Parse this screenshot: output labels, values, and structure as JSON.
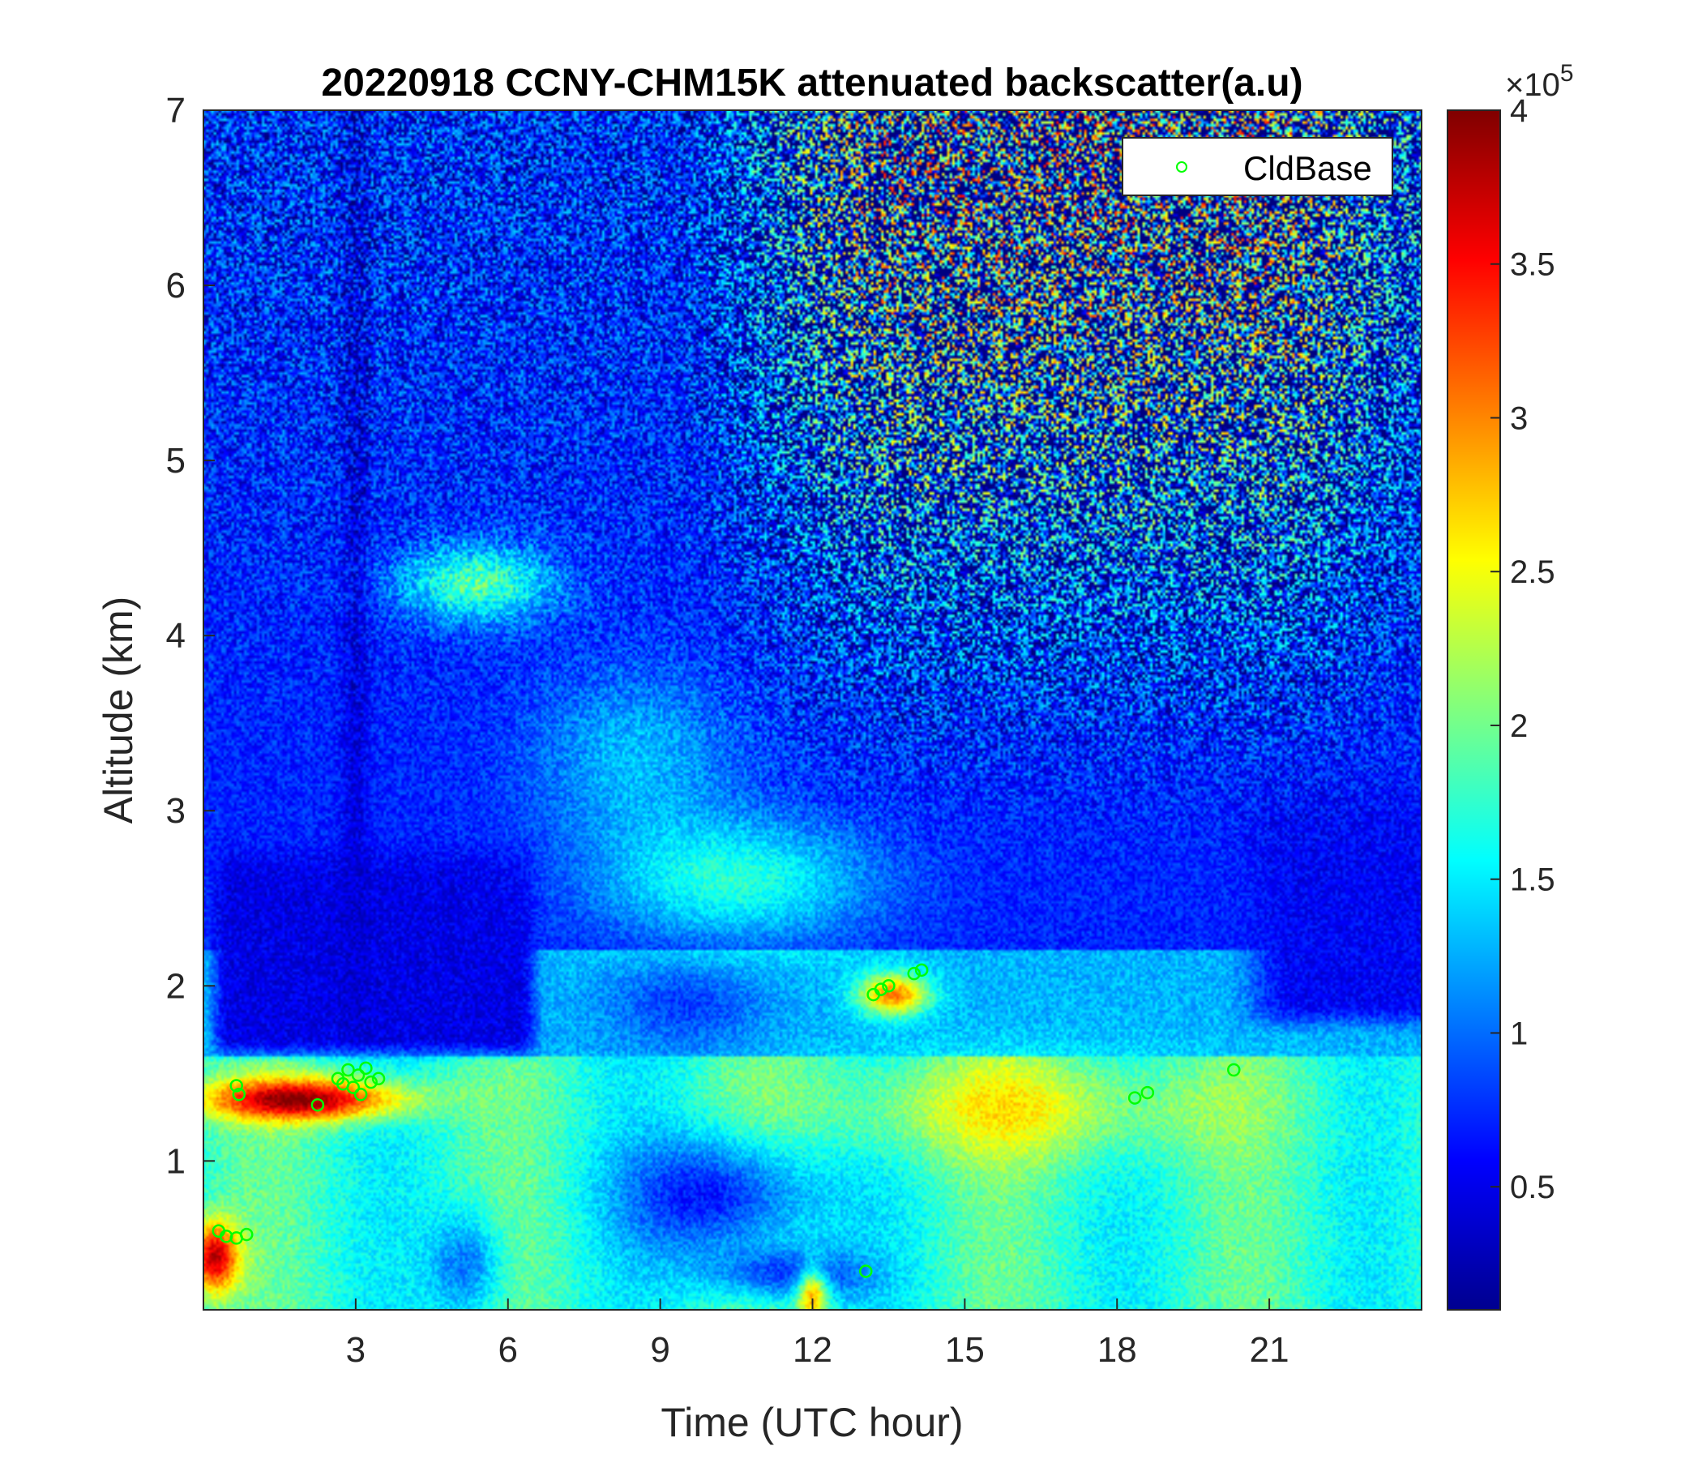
{
  "chart_data": {
    "type": "heatmap",
    "title": "20220918 CCNY-CHM15K attenuated backscatter(a.u)",
    "xlabel": "Time (UTC hour)",
    "ylabel": "Altitude (km)",
    "xlim": [
      0,
      24
    ],
    "ylim": [
      0.15,
      7
    ],
    "xticks": [
      3,
      6,
      9,
      12,
      15,
      18,
      21
    ],
    "xtick_labels": [
      "3",
      "6",
      "9",
      "12",
      "15",
      "18",
      "21"
    ],
    "yticks": [
      1,
      2,
      3,
      4,
      5,
      6,
      7
    ],
    "ytick_labels": [
      "1",
      "2",
      "3",
      "4",
      "5",
      "6",
      "7"
    ],
    "colorbar": {
      "colormap": "jet",
      "clim": [
        0.1,
        4
      ],
      "ticks": [
        0.5,
        1,
        1.5,
        2,
        2.5,
        3,
        3.5,
        4
      ],
      "tick_labels": [
        "0.5",
        "1",
        "1.5",
        "2",
        "2.5",
        "3",
        "3.5",
        "4"
      ],
      "multiplier_prefix": "×10",
      "multiplier_exponent": "5"
    },
    "legend": {
      "placement": "top-right",
      "entries": [
        {
          "name": "CldBase",
          "marker": "circle",
          "color": "#00ff00"
        }
      ]
    },
    "series": [
      {
        "name": "CldBase",
        "type": "scatter",
        "points": [
          [
            0.3,
            0.6
          ],
          [
            0.45,
            0.57
          ],
          [
            0.65,
            0.56
          ],
          [
            0.85,
            0.58
          ],
          [
            0.65,
            1.43
          ],
          [
            0.7,
            1.38
          ],
          [
            2.25,
            1.32
          ],
          [
            2.65,
            1.47
          ],
          [
            2.75,
            1.44
          ],
          [
            2.85,
            1.52
          ],
          [
            2.95,
            1.42
          ],
          [
            3.05,
            1.49
          ],
          [
            3.1,
            1.38
          ],
          [
            3.2,
            1.53
          ],
          [
            3.3,
            1.45
          ],
          [
            3.45,
            1.47
          ],
          [
            13.2,
            1.95
          ],
          [
            13.35,
            1.98
          ],
          [
            13.5,
            2.0
          ],
          [
            14.0,
            2.07
          ],
          [
            14.15,
            2.09
          ],
          [
            18.35,
            1.36
          ],
          [
            18.6,
            1.39
          ],
          [
            20.3,
            1.52
          ],
          [
            13.05,
            0.37
          ]
        ]
      }
    ]
  }
}
